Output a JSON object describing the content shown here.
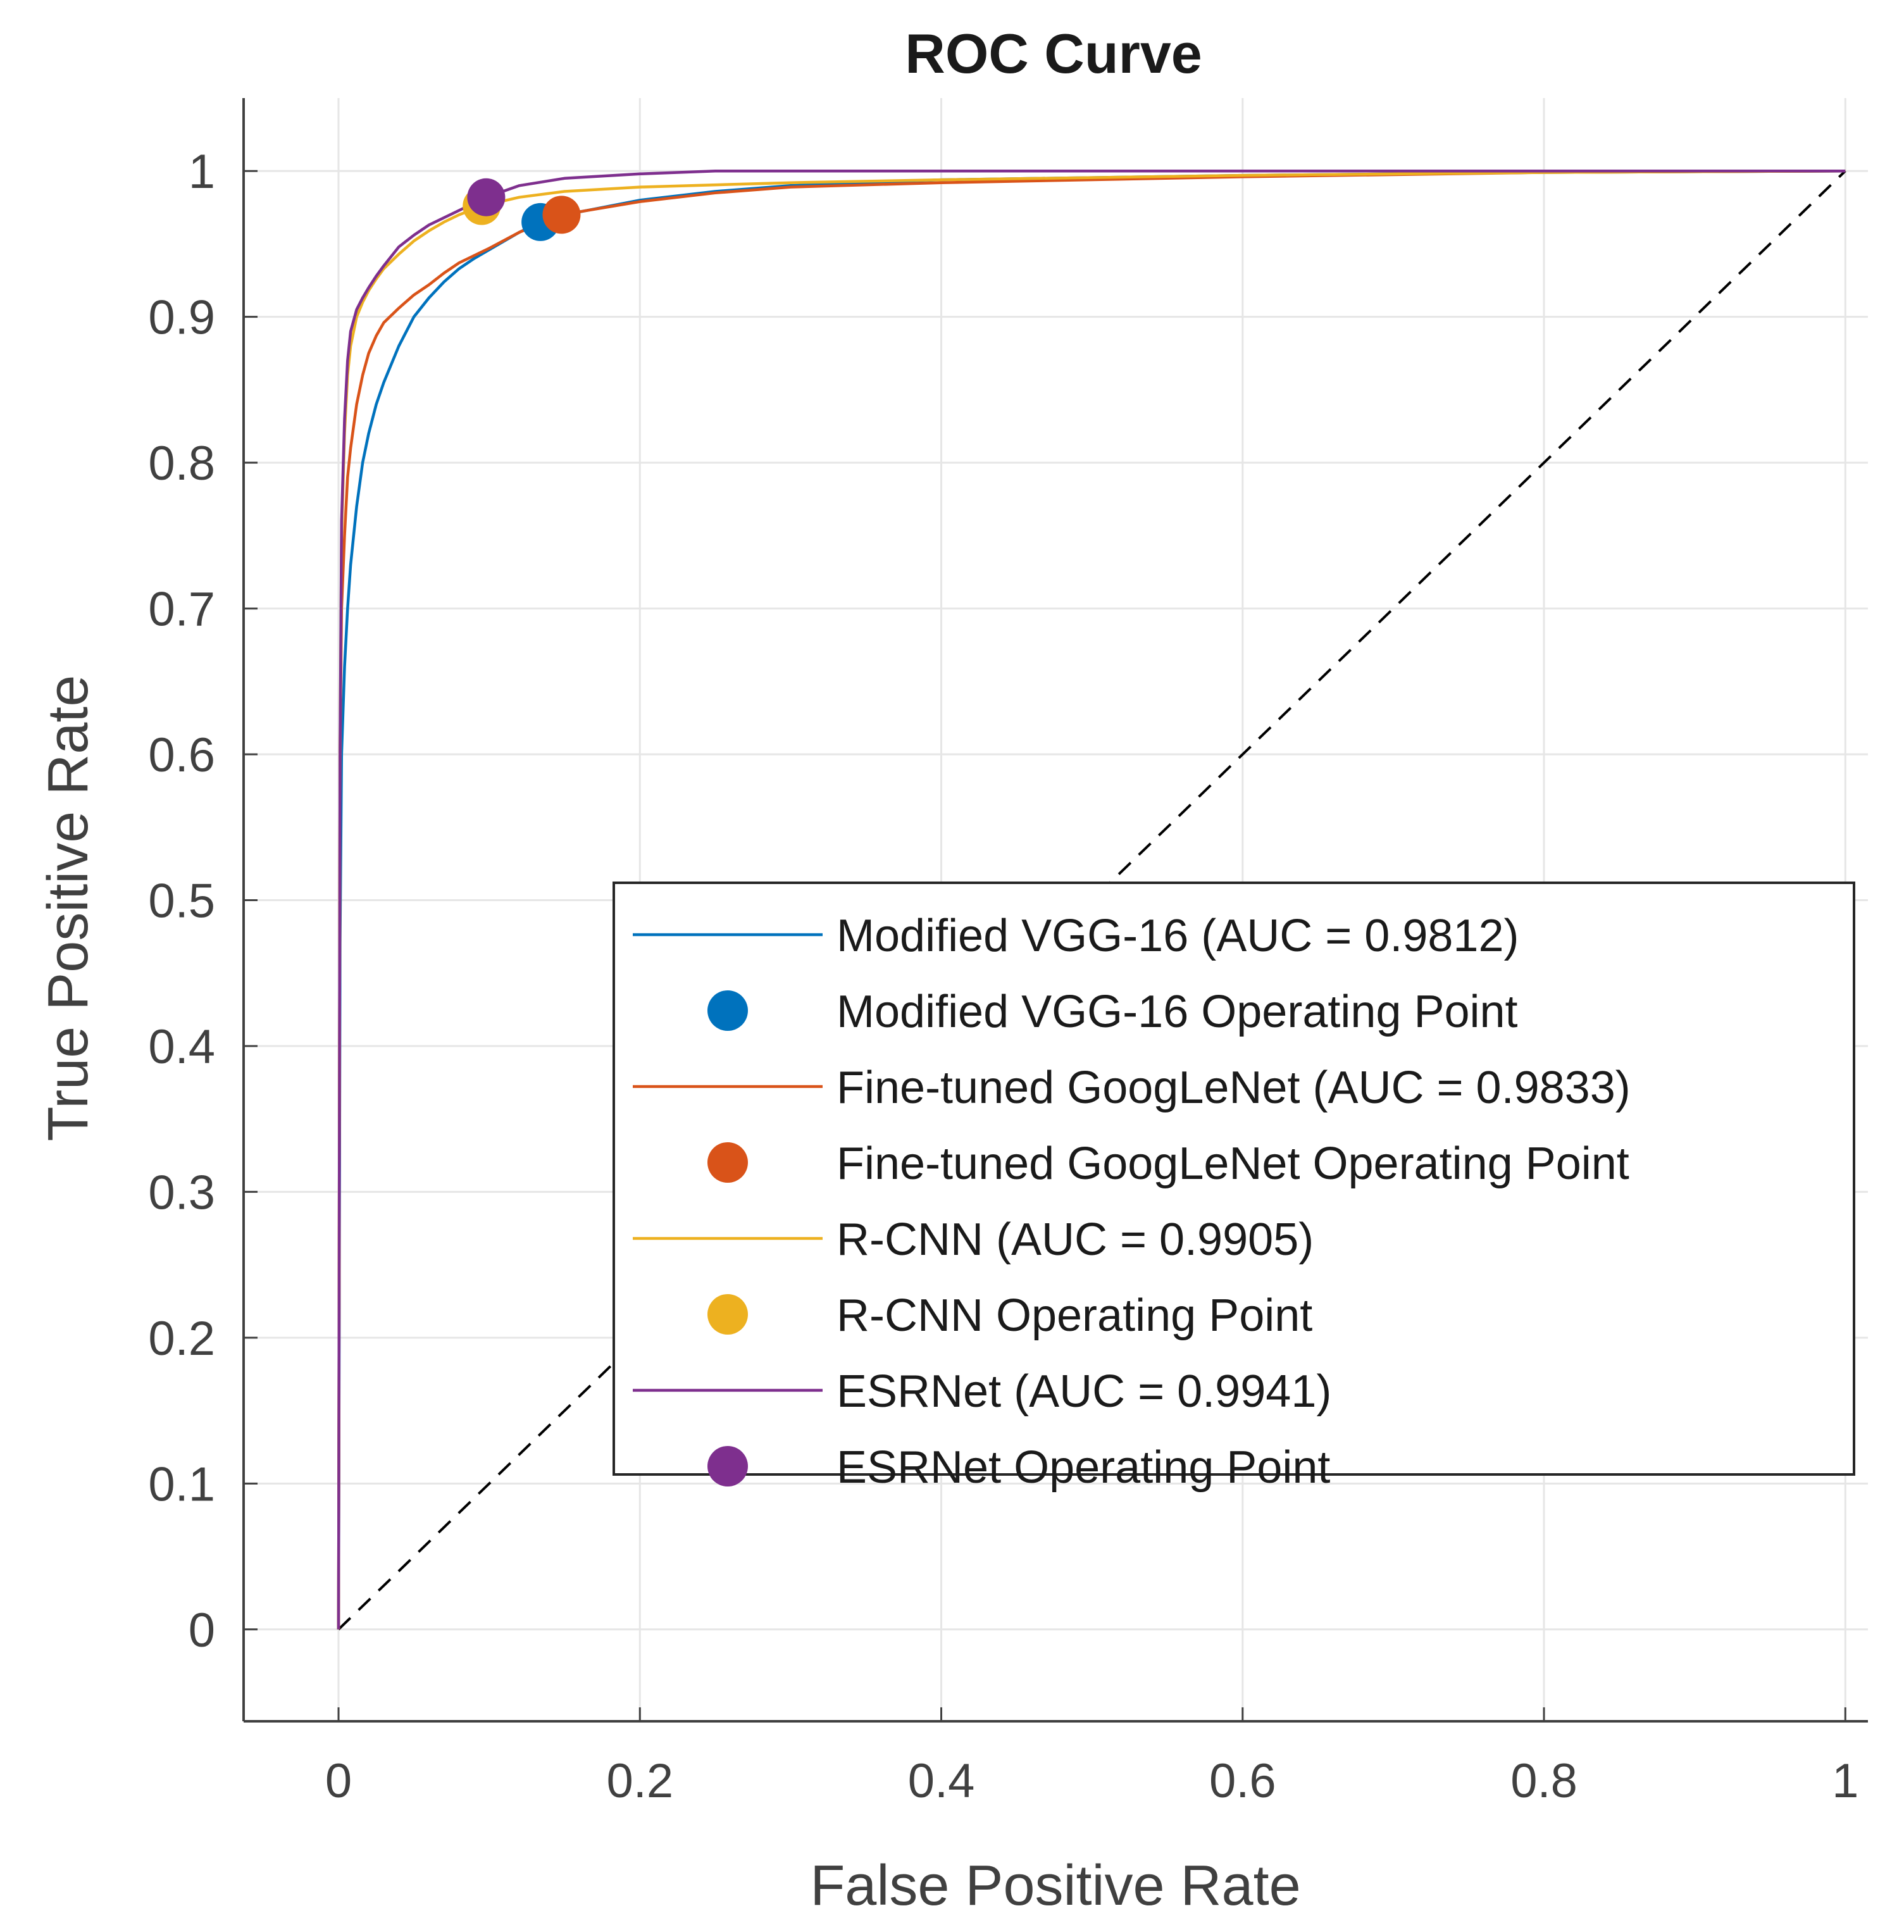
{
  "chart_data": {
    "type": "line",
    "title": "ROC Curve",
    "xlabel": "False Positive Rate",
    "ylabel": "True Positive Rate",
    "xlim": [
      -0.063,
      1.015
    ],
    "ylim": [
      -0.063,
      1.05
    ],
    "xticks": [
      0,
      0.2,
      0.4,
      0.6,
      0.8,
      1
    ],
    "xtick_labels": [
      "0",
      "0.2",
      "0.4",
      "0.6",
      "0.8",
      "1"
    ],
    "yticks": [
      0,
      0.1,
      0.2,
      0.3,
      0.4,
      0.5,
      0.6,
      0.7,
      0.8,
      0.9,
      1
    ],
    "ytick_labels": [
      "0",
      "0.1",
      "0.2",
      "0.3",
      "0.4",
      "0.5",
      "0.6",
      "0.7",
      "0.8",
      "0.9",
      "1"
    ],
    "grid": true,
    "legend_position": "bottom-right",
    "reference_line": {
      "x": [
        0,
        1
      ],
      "y": [
        0,
        1
      ],
      "style": "dashed",
      "color": "#000000"
    },
    "series": [
      {
        "name": "Modified VGG-16 (AUC = 0.9812)",
        "color": "#0072BD",
        "x": [
          0,
          0.001,
          0.002,
          0.004,
          0.006,
          0.008,
          0.012,
          0.016,
          0.02,
          0.025,
          0.03,
          0.04,
          0.05,
          0.06,
          0.07,
          0.08,
          0.09,
          0.1,
          0.11,
          0.12,
          0.13,
          0.15,
          0.2,
          0.25,
          0.3,
          0.4,
          0.6,
          0.8,
          1.0
        ],
        "y": [
          0,
          0.47,
          0.6,
          0.66,
          0.7,
          0.73,
          0.77,
          0.8,
          0.82,
          0.84,
          0.855,
          0.88,
          0.9,
          0.913,
          0.924,
          0.933,
          0.94,
          0.946,
          0.952,
          0.958,
          0.963,
          0.97,
          0.98,
          0.986,
          0.99,
          0.994,
          0.997,
          0.999,
          1.0
        ]
      },
      {
        "name": "Fine-tuned GoogLeNet (AUC = 0.9833)",
        "color": "#D95319",
        "x": [
          0,
          0.001,
          0.002,
          0.004,
          0.006,
          0.008,
          0.012,
          0.016,
          0.02,
          0.025,
          0.03,
          0.04,
          0.05,
          0.06,
          0.07,
          0.08,
          0.09,
          0.1,
          0.12,
          0.148,
          0.2,
          0.25,
          0.3,
          0.4,
          0.6,
          0.8,
          1.0
        ],
        "y": [
          0,
          0.6,
          0.7,
          0.75,
          0.79,
          0.81,
          0.84,
          0.86,
          0.875,
          0.887,
          0.896,
          0.906,
          0.915,
          0.922,
          0.93,
          0.937,
          0.942,
          0.947,
          0.958,
          0.97,
          0.979,
          0.985,
          0.989,
          0.992,
          0.996,
          0.999,
          1.0
        ]
      },
      {
        "name": "R-CNN (AUC = 0.9905)",
        "color": "#EDB120",
        "x": [
          0,
          0.001,
          0.002,
          0.004,
          0.006,
          0.008,
          0.012,
          0.016,
          0.02,
          0.025,
          0.03,
          0.04,
          0.05,
          0.06,
          0.07,
          0.08,
          0.095,
          0.12,
          0.15,
          0.2,
          0.3,
          0.4,
          0.6,
          0.8,
          1.0
        ],
        "y": [
          0,
          0.6,
          0.75,
          0.82,
          0.86,
          0.88,
          0.9,
          0.91,
          0.918,
          0.926,
          0.933,
          0.943,
          0.952,
          0.959,
          0.965,
          0.97,
          0.976,
          0.982,
          0.986,
          0.989,
          0.992,
          0.994,
          0.997,
          0.999,
          1.0
        ]
      },
      {
        "name": "ESRNet (AUC = 0.9941)",
        "color": "#7E2F8E",
        "x": [
          0,
          0.001,
          0.002,
          0.004,
          0.006,
          0.008,
          0.012,
          0.016,
          0.02,
          0.025,
          0.03,
          0.04,
          0.05,
          0.06,
          0.07,
          0.08,
          0.098,
          0.12,
          0.15,
          0.2,
          0.25,
          0.4,
          0.6,
          0.8,
          1.0
        ],
        "y": [
          0,
          0.6,
          0.76,
          0.83,
          0.87,
          0.89,
          0.905,
          0.913,
          0.92,
          0.928,
          0.935,
          0.948,
          0.956,
          0.963,
          0.968,
          0.973,
          0.982,
          0.99,
          0.995,
          0.998,
          1.0,
          1.0,
          1.0,
          1.0,
          1.0
        ]
      }
    ],
    "operating_points": [
      {
        "name": "Modified VGG-16 Operating Point",
        "color": "#0072BD",
        "x": 0.134,
        "y": 0.965
      },
      {
        "name": "Fine-tuned GoogLeNet Operating Point",
        "color": "#D95319",
        "x": 0.148,
        "y": 0.97
      },
      {
        "name": "R-CNN Operating Point",
        "color": "#EDB120",
        "x": 0.095,
        "y": 0.976
      },
      {
        "name": "ESRNet Operating Point",
        "color": "#7E2F8E",
        "x": 0.098,
        "y": 0.982
      }
    ],
    "legend": [
      {
        "label": "Modified VGG-16 (AUC = 0.9812)",
        "kind": "line",
        "color": "#0072BD"
      },
      {
        "label": "Modified VGG-16 Operating Point",
        "kind": "marker",
        "color": "#0072BD"
      },
      {
        "label": "Fine-tuned GoogLeNet (AUC = 0.9833)",
        "kind": "line",
        "color": "#D95319"
      },
      {
        "label": "Fine-tuned GoogLeNet Operating Point",
        "kind": "marker",
        "color": "#D95319"
      },
      {
        "label": "R-CNN (AUC = 0.9905)",
        "kind": "line",
        "color": "#EDB120"
      },
      {
        "label": "R-CNN Operating Point",
        "kind": "marker",
        "color": "#EDB120"
      },
      {
        "label": "ESRNet (AUC = 0.9941)",
        "kind": "line",
        "color": "#7E2F8E"
      },
      {
        "label": "ESRNet Operating Point",
        "kind": "marker",
        "color": "#7E2F8E"
      }
    ]
  }
}
